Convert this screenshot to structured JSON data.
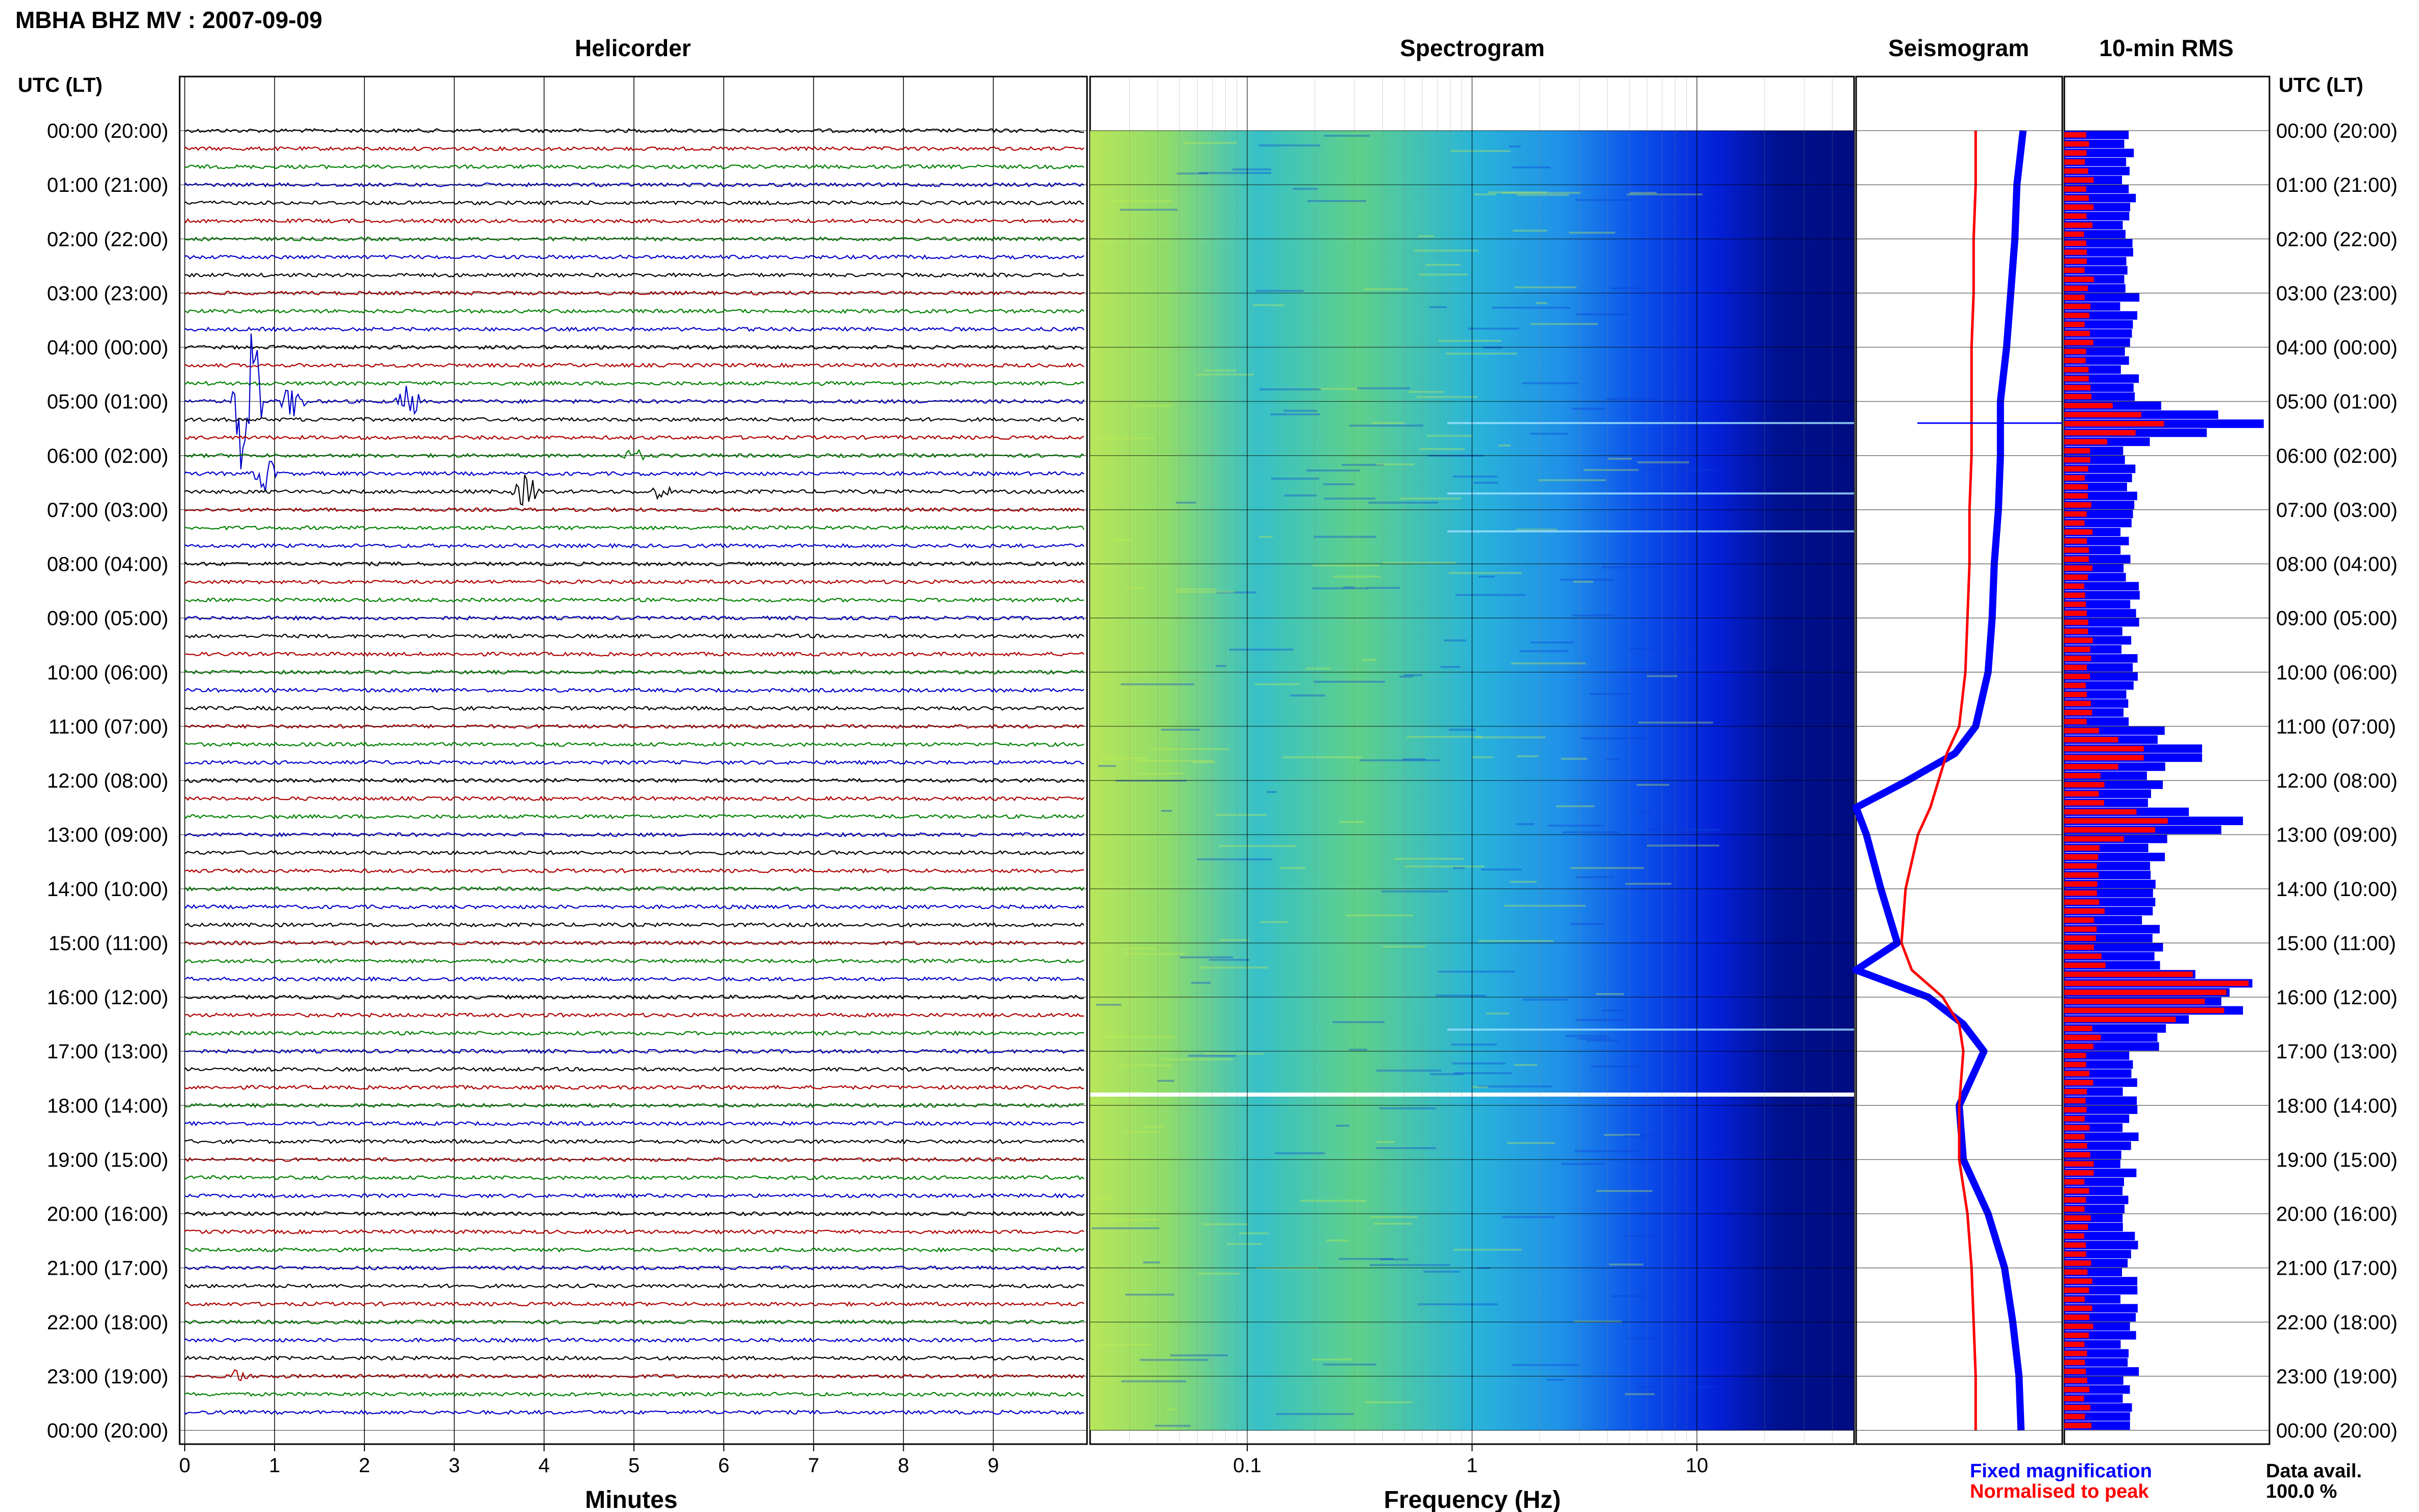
{
  "figure_title": "MBHA BHZ MV : 2007-09-09",
  "panels": {
    "helicorder": "Helicorder",
    "spectrogram": "Spectrogram",
    "seismogram": "Seismogram",
    "rms": "10-min RMS"
  },
  "time_axis_title": "UTC (LT)",
  "time_labels": [
    "00:00 (20:00)",
    "01:00 (21:00)",
    "02:00 (22:00)",
    "03:00 (23:00)",
    "04:00 (00:00)",
    "05:00 (01:00)",
    "06:00 (02:00)",
    "07:00 (03:00)",
    "08:00 (04:00)",
    "09:00 (05:00)",
    "10:00 (06:00)",
    "11:00 (07:00)",
    "12:00 (08:00)",
    "13:00 (09:00)",
    "14:00 (10:00)",
    "15:00 (11:00)",
    "16:00 (12:00)",
    "17:00 (13:00)",
    "18:00 (14:00)",
    "19:00 (15:00)",
    "20:00 (16:00)",
    "21:00 (17:00)",
    "22:00 (18:00)",
    "23:00 (19:00)",
    "00:00 (20:00)"
  ],
  "x_axes": {
    "minutes_label": "Minutes",
    "minutes_ticks": [
      "0",
      "1",
      "2",
      "3",
      "4",
      "5",
      "6",
      "7",
      "8",
      "9"
    ],
    "frequency_label": "Frequency (Hz)",
    "frequency_ticks": [
      "0.1",
      "1",
      "10"
    ]
  },
  "legend": {
    "fixed": "Fixed magnification",
    "normalised": "Normalised to peak",
    "data_avail_label": "Data avail.",
    "data_avail_value": "100.0 %"
  },
  "colors": {
    "trace_cycle": [
      "#000000",
      "#b00000",
      "#008000",
      "#0000cc"
    ],
    "fixed": "#0000ff",
    "normalised": "#ff0000"
  },
  "chart_data": [
    {
      "type": "line",
      "title": "Helicorder",
      "xlabel": "Minutes",
      "ylabel": "UTC (LT)",
      "xlim": [
        0,
        10
      ],
      "rows": 72,
      "row_minutes": 20,
      "events": [
        {
          "row": 15,
          "minute": 0.7,
          "amplitude": "large"
        },
        {
          "row": 15,
          "minute": 1.2,
          "amplitude": "medium"
        },
        {
          "row": 15,
          "minute": 2.5,
          "amplitude": "medium"
        },
        {
          "row": 18,
          "minute": 5.0,
          "amplitude": "small"
        },
        {
          "row": 19,
          "minute": 0.9,
          "amplitude": "medium"
        },
        {
          "row": 20,
          "minute": 3.8,
          "amplitude": "medium"
        },
        {
          "row": 20,
          "minute": 5.3,
          "amplitude": "small"
        },
        {
          "row": 69,
          "minute": 0.6,
          "amplitude": "small"
        }
      ]
    },
    {
      "type": "heatmap",
      "title": "Spectrogram",
      "xlabel": "Frequency (Hz)",
      "x_scale": "log",
      "xlim": [
        0.02,
        50
      ],
      "ylim_hours": [
        0,
        24
      ],
      "gap_hour": 17.8
    },
    {
      "type": "line",
      "title": "Seismogram",
      "y_hours": [
        0,
        1,
        2,
        3,
        4,
        5,
        6,
        7,
        8,
        9,
        10,
        11,
        11.5,
        12,
        12.5,
        13,
        14,
        15,
        15.5,
        16,
        16.5,
        17,
        18,
        19,
        20,
        21,
        22,
        23,
        24
      ],
      "series": [
        {
          "name": "Fixed magnification",
          "values": [
            0.81,
            0.78,
            0.77,
            0.75,
            0.73,
            0.7,
            0.7,
            0.69,
            0.67,
            0.66,
            0.64,
            0.58,
            0.48,
            0.25,
            0.0,
            0.05,
            0.12,
            0.2,
            0.0,
            0.35,
            0.52,
            0.62,
            0.5,
            0.52,
            0.64,
            0.72,
            0.76,
            0.79,
            0.8
          ]
        },
        {
          "name": "Normalised to peak",
          "values": [
            0.58,
            0.58,
            0.57,
            0.57,
            0.56,
            0.56,
            0.56,
            0.55,
            0.55,
            0.54,
            0.53,
            0.5,
            0.44,
            0.4,
            0.36,
            0.3,
            0.24,
            0.22,
            0.27,
            0.42,
            0.5,
            0.52,
            0.5,
            0.5,
            0.54,
            0.56,
            0.57,
            0.58,
            0.58
          ]
        }
      ]
    },
    {
      "type": "bar",
      "title": "10-min RMS",
      "bin_minutes": 10,
      "events": [
        {
          "hour": 5.4,
          "fixed": 1.0,
          "normalised": 0.5
        },
        {
          "hour": 11.5,
          "fixed": 0.78,
          "normalised": 0.45
        },
        {
          "hour": 12.8,
          "fixed": 0.95,
          "normalised": 0.55
        },
        {
          "hour": 15.8,
          "fixed": 1.0,
          "normalised": 0.98
        },
        {
          "hour": 16.2,
          "fixed": 0.95,
          "normalised": 0.85
        }
      ],
      "baseline": {
        "fixed": 0.32,
        "normalised": 0.12
      }
    }
  ]
}
